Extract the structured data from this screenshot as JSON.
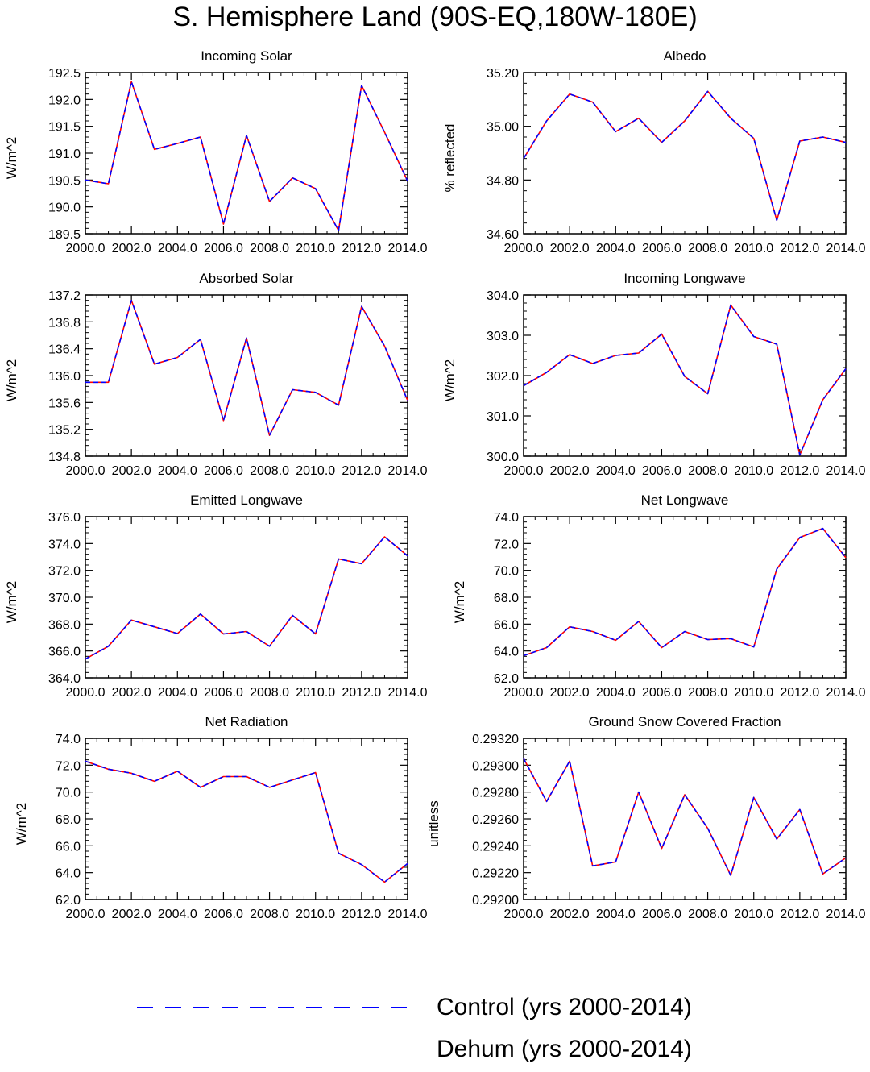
{
  "title": "S. Hemisphere Land (90S-EQ,180W-180E)",
  "legend": [
    {
      "label": "Control (yrs 2000-2014)",
      "color": "#0000ff",
      "style": "dashed"
    },
    {
      "label": "Dehum (yrs 2000-2014)",
      "color": "#ff0000",
      "style": "solid"
    }
  ],
  "chart_data": [
    {
      "type": "line",
      "title": "Incoming Solar",
      "ylabel": "W/m^2",
      "xlim": [
        2000,
        2014
      ],
      "ylim": [
        189.5,
        192.5
      ],
      "xticks": [
        2000,
        2002,
        2004,
        2006,
        2008,
        2010,
        2012,
        2014
      ],
      "xtick_labels": [
        "2000.0",
        "2002.0",
        "2004.0",
        "2006.0",
        "2008.0",
        "2010.0",
        "2012.0",
        "2014.0"
      ],
      "yticks": [
        189.5,
        190.0,
        190.5,
        191.0,
        191.5,
        192.0,
        192.5
      ],
      "ytick_labels": [
        "189.5",
        "190.0",
        "190.5",
        "191.0",
        "191.5",
        "192.0",
        "192.5"
      ],
      "x": [
        2000,
        2001,
        2002,
        2003,
        2004,
        2005,
        2006,
        2007,
        2008,
        2009,
        2010,
        2011,
        2012,
        2013,
        2014
      ],
      "series": [
        {
          "values": [
            190.5,
            190.43,
            192.33,
            191.07,
            191.18,
            191.3,
            189.68,
            191.33,
            190.1,
            190.54,
            190.34,
            189.56,
            192.26,
            191.39,
            190.48
          ]
        },
        {
          "values": [
            190.5,
            190.43,
            192.33,
            191.07,
            191.18,
            191.3,
            189.68,
            191.33,
            190.1,
            190.54,
            190.34,
            189.56,
            192.26,
            191.39,
            190.48
          ]
        }
      ]
    },
    {
      "type": "line",
      "title": "Albedo",
      "ylabel": "% reflected",
      "xlim": [
        2000,
        2014
      ],
      "ylim": [
        34.6,
        35.2
      ],
      "xticks": [
        2000,
        2002,
        2004,
        2006,
        2008,
        2010,
        2012,
        2014
      ],
      "xtick_labels": [
        "2000.0",
        "2002.0",
        "2004.0",
        "2006.0",
        "2008.0",
        "2010.0",
        "2012.0",
        "2014.0"
      ],
      "yticks": [
        34.6,
        34.8,
        35.0,
        35.2
      ],
      "ytick_labels": [
        "34.60",
        "34.80",
        "35.00",
        "35.20"
      ],
      "x": [
        2000,
        2001,
        2002,
        2003,
        2004,
        2005,
        2006,
        2007,
        2008,
        2009,
        2010,
        2011,
        2012,
        2013,
        2014
      ],
      "series": [
        {
          "values": [
            34.88,
            35.02,
            35.12,
            35.09,
            34.98,
            35.03,
            34.94,
            35.02,
            35.13,
            35.03,
            34.955,
            34.65,
            34.945,
            34.96,
            34.94
          ]
        },
        {
          "values": [
            34.88,
            35.02,
            35.12,
            35.09,
            34.98,
            35.03,
            34.94,
            35.02,
            35.13,
            35.03,
            34.955,
            34.65,
            34.945,
            34.96,
            34.94
          ]
        }
      ]
    },
    {
      "type": "line",
      "title": "Absorbed Solar",
      "ylabel": "W/m^2",
      "xlim": [
        2000,
        2014
      ],
      "ylim": [
        134.8,
        137.2
      ],
      "xticks": [
        2000,
        2002,
        2004,
        2006,
        2008,
        2010,
        2012,
        2014
      ],
      "xtick_labels": [
        "2000.0",
        "2002.0",
        "2004.0",
        "2006.0",
        "2008.0",
        "2010.0",
        "2012.0",
        "2014.0"
      ],
      "yticks": [
        134.8,
        135.2,
        135.6,
        136.0,
        136.4,
        136.8,
        137.2
      ],
      "ytick_labels": [
        "134.8",
        "135.2",
        "135.6",
        "136.0",
        "136.4",
        "136.8",
        "137.2"
      ],
      "x": [
        2000,
        2001,
        2002,
        2003,
        2004,
        2005,
        2006,
        2007,
        2008,
        2009,
        2010,
        2011,
        2012,
        2013,
        2014
      ],
      "series": [
        {
          "values": [
            135.9,
            135.9,
            137.12,
            136.17,
            136.27,
            136.54,
            135.33,
            136.56,
            135.11,
            135.79,
            135.75,
            135.56,
            137.03,
            136.44,
            135.63
          ]
        },
        {
          "values": [
            135.9,
            135.9,
            137.12,
            136.17,
            136.27,
            136.54,
            135.33,
            136.56,
            135.11,
            135.79,
            135.75,
            135.56,
            137.03,
            136.44,
            135.63
          ]
        }
      ]
    },
    {
      "type": "line",
      "title": "Incoming Longwave",
      "ylabel": "W/m^2",
      "xlim": [
        2000,
        2014
      ],
      "ylim": [
        300.0,
        304.0
      ],
      "xticks": [
        2000,
        2002,
        2004,
        2006,
        2008,
        2010,
        2012,
        2014
      ],
      "xtick_labels": [
        "2000.0",
        "2002.0",
        "2004.0",
        "2006.0",
        "2008.0",
        "2010.0",
        "2012.0",
        "2014.0"
      ],
      "yticks": [
        300.0,
        301.0,
        302.0,
        303.0,
        304.0
      ],
      "ytick_labels": [
        "300.0",
        "301.0",
        "302.0",
        "303.0",
        "304.0"
      ],
      "x": [
        2000,
        2001,
        2002,
        2003,
        2004,
        2005,
        2006,
        2007,
        2008,
        2009,
        2010,
        2011,
        2012,
        2013,
        2014
      ],
      "series": [
        {
          "values": [
            301.75,
            302.08,
            302.52,
            302.3,
            302.5,
            302.56,
            303.03,
            301.98,
            301.55,
            303.75,
            302.97,
            302.78,
            300.03,
            301.4,
            302.17
          ]
        },
        {
          "values": [
            301.75,
            302.08,
            302.52,
            302.3,
            302.5,
            302.56,
            303.03,
            301.98,
            301.55,
            303.75,
            302.97,
            302.78,
            300.03,
            301.4,
            302.17
          ]
        }
      ]
    },
    {
      "type": "line",
      "title": "Emitted Longwave",
      "ylabel": "W/m^2",
      "xlim": [
        2000,
        2014
      ],
      "ylim": [
        364.0,
        376.0
      ],
      "xticks": [
        2000,
        2002,
        2004,
        2006,
        2008,
        2010,
        2012,
        2014
      ],
      "xtick_labels": [
        "2000.0",
        "2002.0",
        "2004.0",
        "2006.0",
        "2008.0",
        "2010.0",
        "2012.0",
        "2014.0"
      ],
      "yticks": [
        364.0,
        366.0,
        368.0,
        370.0,
        372.0,
        374.0,
        376.0
      ],
      "ytick_labels": [
        "364.0",
        "366.0",
        "368.0",
        "370.0",
        "372.0",
        "374.0",
        "376.0"
      ],
      "x": [
        2000,
        2001,
        2002,
        2003,
        2004,
        2005,
        2006,
        2007,
        2008,
        2009,
        2010,
        2011,
        2012,
        2013,
        2014
      ],
      "series": [
        {
          "values": [
            365.4,
            366.35,
            368.3,
            367.8,
            367.3,
            368.75,
            367.27,
            367.45,
            366.35,
            368.65,
            367.27,
            372.85,
            372.5,
            374.5,
            373.08
          ]
        },
        {
          "values": [
            365.4,
            366.35,
            368.3,
            367.8,
            367.3,
            368.75,
            367.27,
            367.45,
            366.35,
            368.65,
            367.27,
            372.85,
            372.5,
            374.5,
            373.08
          ]
        }
      ]
    },
    {
      "type": "line",
      "title": "Net Longwave",
      "ylabel": "W/m^2",
      "xlim": [
        2000,
        2014
      ],
      "ylim": [
        62.0,
        74.0
      ],
      "xticks": [
        2000,
        2002,
        2004,
        2006,
        2008,
        2010,
        2012,
        2014
      ],
      "xtick_labels": [
        "2000.0",
        "2002.0",
        "2004.0",
        "2006.0",
        "2008.0",
        "2010.0",
        "2012.0",
        "2014.0"
      ],
      "yticks": [
        62.0,
        64.0,
        66.0,
        68.0,
        70.0,
        72.0,
        74.0
      ],
      "ytick_labels": [
        "62.0",
        "64.0",
        "66.0",
        "68.0",
        "70.0",
        "72.0",
        "74.0"
      ],
      "x": [
        2000,
        2001,
        2002,
        2003,
        2004,
        2005,
        2006,
        2007,
        2008,
        2009,
        2010,
        2011,
        2012,
        2013,
        2014
      ],
      "series": [
        {
          "values": [
            63.65,
            64.25,
            65.8,
            65.45,
            64.8,
            66.2,
            64.25,
            65.45,
            64.85,
            64.92,
            64.3,
            70.1,
            72.45,
            73.12,
            70.95
          ]
        },
        {
          "values": [
            63.65,
            64.25,
            65.8,
            65.45,
            64.8,
            66.2,
            64.25,
            65.45,
            64.85,
            64.92,
            64.3,
            70.1,
            72.45,
            73.12,
            70.95
          ]
        }
      ]
    },
    {
      "type": "line",
      "title": "Net Radiation",
      "ylabel": "W/m^2",
      "xlim": [
        2000,
        2014
      ],
      "ylim": [
        62.0,
        74.0
      ],
      "xticks": [
        2000,
        2002,
        2004,
        2006,
        2008,
        2010,
        2012,
        2014
      ],
      "xtick_labels": [
        "2000.0",
        "2002.0",
        "2004.0",
        "2006.0",
        "2008.0",
        "2010.0",
        "2012.0",
        "2014.0"
      ],
      "yticks": [
        62.0,
        64.0,
        66.0,
        68.0,
        70.0,
        72.0,
        74.0
      ],
      "ytick_labels": [
        "62.0",
        "64.0",
        "66.0",
        "68.0",
        "70.0",
        "72.0",
        "74.0"
      ],
      "x": [
        2000,
        2001,
        2002,
        2003,
        2004,
        2005,
        2006,
        2007,
        2008,
        2009,
        2010,
        2011,
        2012,
        2013,
        2014
      ],
      "series": [
        {
          "values": [
            72.3,
            71.7,
            71.4,
            70.8,
            71.55,
            70.35,
            71.15,
            71.15,
            70.35,
            70.9,
            71.45,
            65.45,
            64.6,
            63.3,
            64.68
          ]
        },
        {
          "values": [
            72.3,
            71.7,
            71.4,
            70.8,
            71.55,
            70.35,
            71.15,
            71.15,
            70.35,
            70.9,
            71.45,
            65.45,
            64.6,
            63.3,
            64.68
          ]
        }
      ]
    },
    {
      "type": "line",
      "title": "Ground Snow Covered Fraction",
      "ylabel": "unitless",
      "xlim": [
        2000,
        2014
      ],
      "ylim": [
        0.292,
        0.2932
      ],
      "xticks": [
        2000,
        2002,
        2004,
        2006,
        2008,
        2010,
        2012,
        2014
      ],
      "xtick_labels": [
        "2000.0",
        "2002.0",
        "2004.0",
        "2006.0",
        "2008.0",
        "2010.0",
        "2012.0",
        "2014.0"
      ],
      "yticks": [
        0.292,
        0.2922,
        0.2924,
        0.2926,
        0.2928,
        0.293,
        0.2932
      ],
      "ytick_labels": [
        "0.29200",
        "0.29220",
        "0.29240",
        "0.29260",
        "0.29280",
        "0.29300",
        "0.29320"
      ],
      "x": [
        2000,
        2001,
        2002,
        2003,
        2004,
        2005,
        2006,
        2007,
        2008,
        2009,
        2010,
        2011,
        2012,
        2013,
        2014
      ],
      "series": [
        {
          "values": [
            0.29305,
            0.29273,
            0.29303,
            0.29225,
            0.29228,
            0.2928,
            0.29238,
            0.29278,
            0.29253,
            0.29218,
            0.29276,
            0.29245,
            0.29267,
            0.29219,
            0.29231
          ]
        },
        {
          "values": [
            0.29305,
            0.29273,
            0.29303,
            0.29225,
            0.29228,
            0.2928,
            0.29238,
            0.29278,
            0.29253,
            0.29218,
            0.29276,
            0.29245,
            0.29267,
            0.29219,
            0.29231
          ]
        }
      ]
    }
  ]
}
